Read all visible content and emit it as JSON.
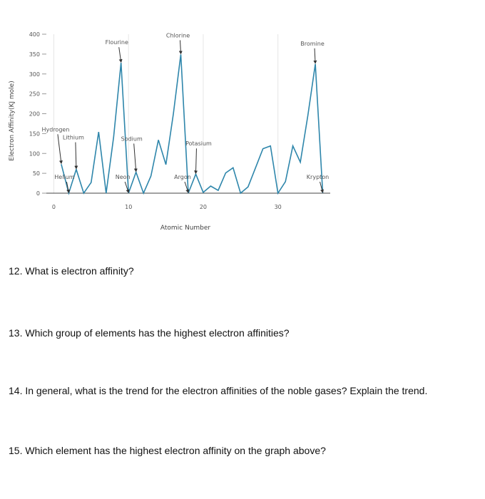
{
  "chart_data": {
    "type": "line",
    "title": "",
    "xlabel": "Atomic Number",
    "ylabel": "Electron Affinity(KJ mole)",
    "xlim": [
      -1,
      37
    ],
    "ylim": [
      0,
      400
    ],
    "x_ticks": [
      0,
      10,
      20,
      30
    ],
    "y_ticks": [
      0,
      50,
      100,
      150,
      200,
      250,
      300,
      350,
      400
    ],
    "line_color": "#2e86ab",
    "grid": "vertical",
    "series": [
      {
        "x": [
          1,
          2,
          3,
          4,
          5,
          6,
          7,
          8,
          9,
          10,
          11,
          12,
          13,
          14,
          15,
          16,
          17,
          18,
          19,
          20,
          21,
          22,
          23,
          24,
          25,
          26,
          27,
          28,
          29,
          30,
          31,
          32,
          33,
          34,
          35,
          36
        ],
        "values": [
          73,
          0,
          60,
          0,
          27,
          154,
          0,
          141,
          328,
          0,
          53,
          0,
          43,
          134,
          72,
          200,
          349,
          0,
          48,
          2,
          18,
          7,
          51,
          64,
          0,
          16,
          64,
          112,
          119,
          0,
          29,
          119,
          78,
          195,
          325,
          0
        ]
      }
    ],
    "annotations": [
      {
        "text": "Hydrogen",
        "x": 1,
        "y": 73
      },
      {
        "text": "Helium",
        "x": 2,
        "y": 0
      },
      {
        "text": "Lithium",
        "x": 3,
        "y": 60
      },
      {
        "text": "Flourine",
        "x": 9,
        "y": 328
      },
      {
        "text": "Neon",
        "x": 10,
        "y": 0
      },
      {
        "text": "Sodium",
        "x": 11,
        "y": 53
      },
      {
        "text": "Chlorine",
        "x": 17,
        "y": 349
      },
      {
        "text": "Argon",
        "x": 18,
        "y": 0
      },
      {
        "text": "Potasium",
        "x": 19,
        "y": 48
      },
      {
        "text": "Bromine",
        "x": 35,
        "y": 325
      },
      {
        "text": "Krypton",
        "x": 36,
        "y": 0
      }
    ]
  },
  "questions": {
    "q12": "12. What is electron affinity?",
    "q13": "13. Which group of elements has the highest electron affinities?",
    "q14": "14. In general, what is the trend for the electron affinities of the noble gases? Explain the trend.",
    "q15": "15. Which element has the highest electron affinity on the graph above?"
  }
}
